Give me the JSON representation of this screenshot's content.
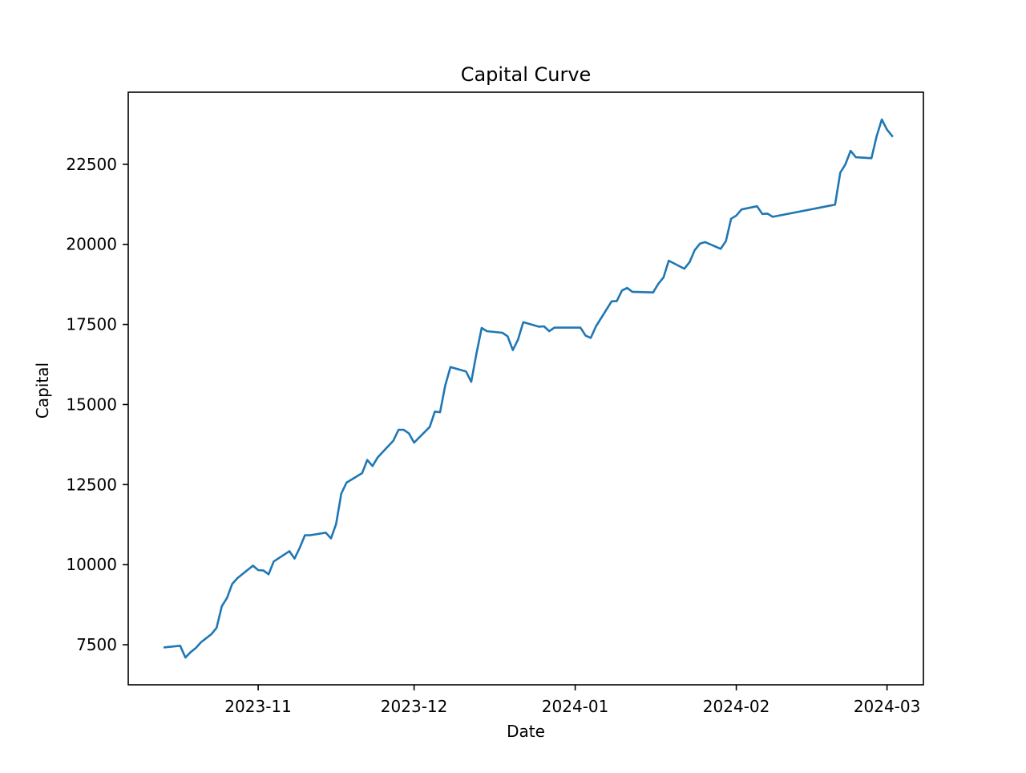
{
  "chart_data": {
    "type": "line",
    "title": "Capital Curve",
    "xlabel": "Date",
    "ylabel": "Capital",
    "x_ticks": [
      "2023-11-01",
      "2023-12-01",
      "2024-01-01",
      "2024-02-01",
      "2024-03-01"
    ],
    "x_tick_labels": [
      "2023-11",
      "2023-12",
      "2024-01",
      "2024-02",
      "2024-03"
    ],
    "y_ticks": [
      7500,
      10000,
      12500,
      15000,
      17500,
      20000,
      22500
    ],
    "y_tick_labels": [
      "7500",
      "10000",
      "12500",
      "15000",
      "17500",
      "20000",
      "22500"
    ],
    "xlim": [
      "2023-10-07",
      "2024-03-08"
    ],
    "ylim": [
      6250,
      24750
    ],
    "grid": false,
    "legend": "none",
    "line_color": "#1f77b4",
    "series": [
      {
        "x": [
          "2023-10-14",
          "2023-10-17",
          "2023-10-18",
          "2023-10-19",
          "2023-10-20",
          "2023-10-21",
          "2023-10-23",
          "2023-10-24",
          "2023-10-25",
          "2023-10-26",
          "2023-10-27",
          "2023-10-28",
          "2023-10-31",
          "2023-11-01",
          "2023-11-02",
          "2023-11-03",
          "2023-11-04",
          "2023-11-07",
          "2023-11-08",
          "2023-11-09",
          "2023-11-10",
          "2023-11-11",
          "2023-11-14",
          "2023-11-15",
          "2023-11-16",
          "2023-11-17",
          "2023-11-18",
          "2023-11-21",
          "2023-11-22",
          "2023-11-23",
          "2023-11-24",
          "2023-11-27",
          "2023-11-28",
          "2023-11-29",
          "2023-11-30",
          "2023-12-01",
          "2023-12-04",
          "2023-12-05",
          "2023-12-06",
          "2023-12-07",
          "2023-12-08",
          "2023-12-11",
          "2023-12-12",
          "2023-12-13",
          "2023-12-14",
          "2023-12-15",
          "2023-12-18",
          "2023-12-19",
          "2023-12-20",
          "2023-12-21",
          "2023-12-22",
          "2023-12-25",
          "2023-12-26",
          "2023-12-27",
          "2023-12-28",
          "2024-01-02",
          "2024-01-03",
          "2024-01-04",
          "2024-01-05",
          "2024-01-08",
          "2024-01-09",
          "2024-01-10",
          "2024-01-11",
          "2024-01-12",
          "2024-01-16",
          "2024-01-17",
          "2024-01-18",
          "2024-01-19",
          "2024-01-22",
          "2024-01-23",
          "2024-01-24",
          "2024-01-25",
          "2024-01-26",
          "2024-01-29",
          "2024-01-30",
          "2024-01-31",
          "2024-02-01",
          "2024-02-02",
          "2024-02-05",
          "2024-02-06",
          "2024-02-07",
          "2024-02-08",
          "2024-02-20",
          "2024-02-21",
          "2024-02-22",
          "2024-02-23",
          "2024-02-24",
          "2024-02-27",
          "2024-02-28",
          "2024-02-29",
          "2024-03-01",
          "2024-03-02"
        ],
        "y": [
          7420,
          7470,
          7100,
          7270,
          7400,
          7580,
          7830,
          8030,
          8700,
          8960,
          9400,
          9580,
          9970,
          9830,
          9820,
          9700,
          10100,
          10420,
          10190,
          10530,
          10920,
          10920,
          11000,
          10820,
          11270,
          12220,
          12560,
          12860,
          13270,
          13080,
          13350,
          13870,
          14210,
          14210,
          14100,
          13810,
          14300,
          14780,
          14760,
          15600,
          16170,
          16030,
          15710,
          16590,
          17390,
          17290,
          17240,
          17130,
          16700,
          17030,
          17570,
          17430,
          17440,
          17290,
          17400,
          17400,
          17150,
          17080,
          17440,
          18220,
          18230,
          18560,
          18640,
          18520,
          18500,
          18770,
          18970,
          19490,
          19240,
          19440,
          19820,
          20020,
          20070,
          19860,
          20100,
          20800,
          20900,
          21090,
          21190,
          20950,
          20960,
          20860,
          21240,
          22240,
          22500,
          22920,
          22720,
          22690,
          23370,
          23900,
          23580,
          23380
        ]
      }
    ]
  }
}
